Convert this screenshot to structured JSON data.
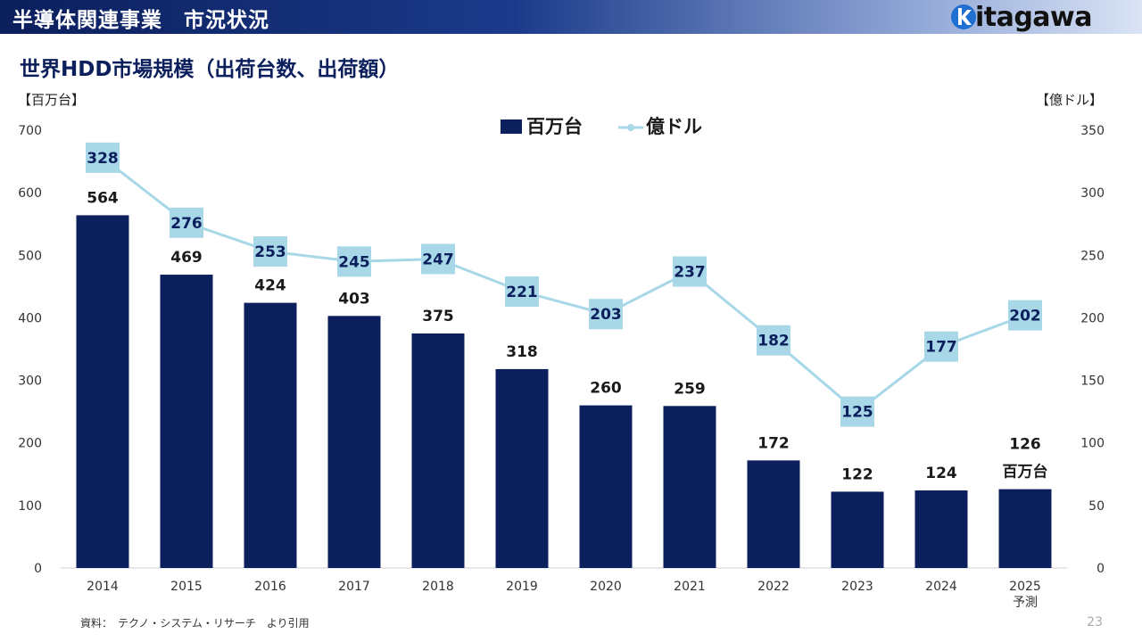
{
  "header": {
    "title": "半導体関連事業　市況状況"
  },
  "logo": {
    "text_bold": "itagawa",
    "text_rest": ""
  },
  "page": {
    "title": "世界HDD市場規模（出荷台数、出荷額）",
    "number": "23"
  },
  "units": {
    "left": "【百万台】",
    "right": "【億ドル】"
  },
  "source": "資料：　テクノ・システム・リサーチ　より引用",
  "colors": {
    "bar": "#0b1f5c",
    "line": "#a8d8e8",
    "header": "#0b1f5c"
  },
  "chart_data": {
    "type": "bar",
    "categories": [
      "2014",
      "2015",
      "2016",
      "2017",
      "2018",
      "2019",
      "2020",
      "2021",
      "2022",
      "2023",
      "2024",
      "2025"
    ],
    "category_sublabels": [
      "",
      "",
      "",
      "",
      "",
      "",
      "",
      "",
      "",
      "",
      "",
      "予測"
    ],
    "series": [
      {
        "name": "百万台",
        "type": "bar",
        "axis": "left",
        "values": [
          564,
          469,
          424,
          403,
          375,
          318,
          260,
          259,
          172,
          122,
          124,
          126
        ]
      },
      {
        "name": "億ドル",
        "type": "line",
        "axis": "right",
        "values": [
          328,
          276,
          253,
          245,
          247,
          221,
          203,
          237,
          182,
          125,
          177,
          202
        ]
      }
    ],
    "extra_labels": [
      {
        "category": "2025",
        "text": "百万台"
      }
    ],
    "y_left": {
      "min": 0,
      "max": 700,
      "ticks": [
        0,
        100,
        200,
        300,
        400,
        500,
        600,
        700
      ]
    },
    "y_right": {
      "min": 0,
      "max": 350,
      "ticks": [
        0,
        50,
        100,
        150,
        200,
        250,
        300,
        350
      ]
    },
    "legend": {
      "position": "top-center"
    },
    "grid": false
  }
}
